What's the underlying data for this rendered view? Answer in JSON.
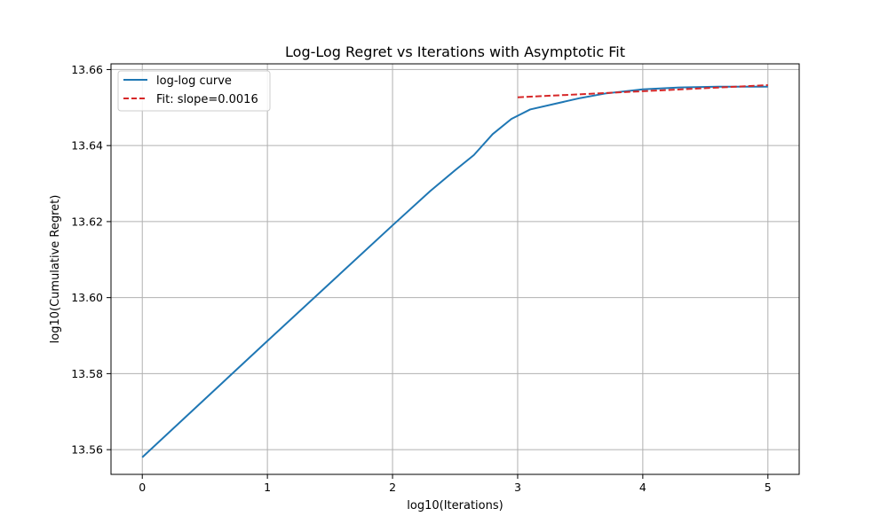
{
  "chart_data": {
    "type": "line",
    "title": "Log-Log Regret vs Iterations with Asymptotic Fit",
    "xlabel": "log10(Iterations)",
    "ylabel": "log10(Cumulative Regret)",
    "xlim": [
      -0.25,
      5.25
    ],
    "ylim": [
      13.5535,
      13.6615
    ],
    "xticks": [
      0,
      1,
      2,
      3,
      4,
      5
    ],
    "xtick_labels": [
      "0",
      "1",
      "2",
      "3",
      "4",
      "5"
    ],
    "yticks": [
      13.56,
      13.58,
      13.6,
      13.62,
      13.64,
      13.66
    ],
    "ytick_labels": [
      "13.56",
      "13.58",
      "13.60",
      "13.62",
      "13.64",
      "13.66"
    ],
    "grid": true,
    "legend": {
      "position": "top-left"
    },
    "series": [
      {
        "name": "log-log curve",
        "color": "#1f77b4",
        "style": "solid",
        "x": [
          0,
          0.5,
          1,
          1.5,
          2,
          2.3,
          2.5,
          2.65,
          2.8,
          2.95,
          3.1,
          3.3,
          3.5,
          3.7,
          4.0,
          4.3,
          4.6,
          5.0
        ],
        "y": [
          13.558,
          13.5733,
          13.5886,
          13.6038,
          13.619,
          13.628,
          13.6335,
          13.6375,
          13.643,
          13.647,
          13.6495,
          13.651,
          13.6525,
          13.6537,
          13.6548,
          13.6553,
          13.6555,
          13.6555
        ]
      },
      {
        "name": "Fit: slope=0.0016",
        "color": "#d62728",
        "style": "dashed",
        "x": [
          3.0,
          5.0
        ],
        "y": [
          13.6527,
          13.6559
        ]
      }
    ]
  }
}
